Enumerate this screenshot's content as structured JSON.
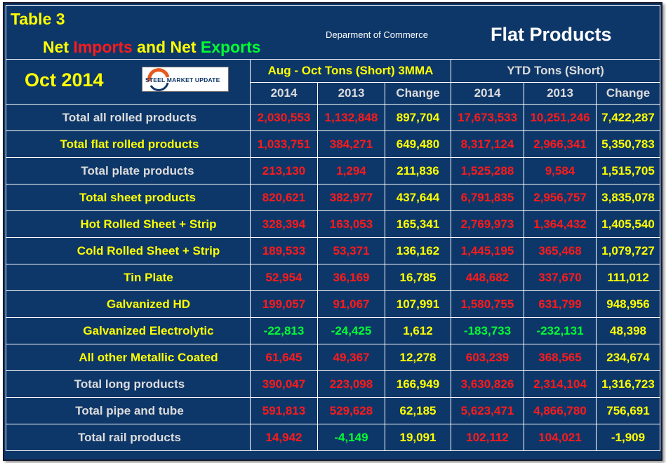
{
  "title": {
    "table_no": "Table 3",
    "net1": "Net ",
    "imports": "Imports",
    "and": " and Net ",
    "exports": "Exports",
    "department": "Deparment of Commerce",
    "product": "Flat Products"
  },
  "period": "Oct 2014",
  "logo_text": "STEEL MARKET UPDATE",
  "groups": {
    "mma": "Aug - Oct Tons (Short) 3MMA",
    "ytd": "YTD Tons (Short)"
  },
  "cols": [
    "2014",
    "2013",
    "Change",
    "2014",
    "2013",
    "Change"
  ],
  "colors": {
    "background": "#0e3769",
    "import_red": "#ff1a1a",
    "export_green": "#00ff33",
    "change_yellow": "#ffff00"
  },
  "rows": [
    {
      "label": "Total all rolled products",
      "values": [
        "2,030,553",
        "1,132,848",
        "897,704",
        "17,673,533",
        "10,251,246",
        "7,422,287"
      ]
    },
    {
      "label": "Total flat rolled products",
      "values": [
        "1,033,751",
        "384,271",
        "649,480",
        "8,317,124",
        "2,966,341",
        "5,350,783"
      ]
    },
    {
      "label": "Total plate products",
      "values": [
        "213,130",
        "1,294",
        "211,836",
        "1,525,288",
        "9,584",
        "1,515,705"
      ]
    },
    {
      "label": "Total sheet products",
      "values": [
        "820,621",
        "382,977",
        "437,644",
        "6,791,835",
        "2,956,757",
        "3,835,078"
      ]
    },
    {
      "label": "Hot Rolled Sheet + Strip",
      "values": [
        "328,394",
        "163,053",
        "165,341",
        "2,769,973",
        "1,364,432",
        "1,405,540"
      ]
    },
    {
      "label": "Cold Rolled Sheet + Strip",
      "values": [
        "189,533",
        "53,371",
        "136,162",
        "1,445,195",
        "365,468",
        "1,079,727"
      ]
    },
    {
      "label": "Tin Plate",
      "values": [
        "52,954",
        "36,169",
        "16,785",
        "448,682",
        "337,670",
        "111,012"
      ]
    },
    {
      "label": "Galvanized HD",
      "values": [
        "199,057",
        "91,067",
        "107,991",
        "1,580,755",
        "631,799",
        "948,956"
      ]
    },
    {
      "label": "Galvanized Electrolytic",
      "values": [
        "-22,813",
        "-24,425",
        "1,612",
        "-183,733",
        "-232,131",
        "48,398"
      ]
    },
    {
      "label": "All other Metallic Coated",
      "values": [
        "61,645",
        "49,367",
        "12,278",
        "603,239",
        "368,565",
        "234,674"
      ]
    },
    {
      "label": "Total long products",
      "values": [
        "390,047",
        "223,098",
        "166,949",
        "3,630,826",
        "2,314,104",
        "1,316,723"
      ]
    },
    {
      "label": "Total pipe and tube",
      "values": [
        "591,813",
        "529,628",
        "62,185",
        "5,623,471",
        "4,866,780",
        "756,691"
      ]
    },
    {
      "label": "Total rail products",
      "values": [
        "14,942",
        "-4,149",
        "19,091",
        "102,112",
        "104,021",
        "-1,909"
      ]
    }
  ]
}
